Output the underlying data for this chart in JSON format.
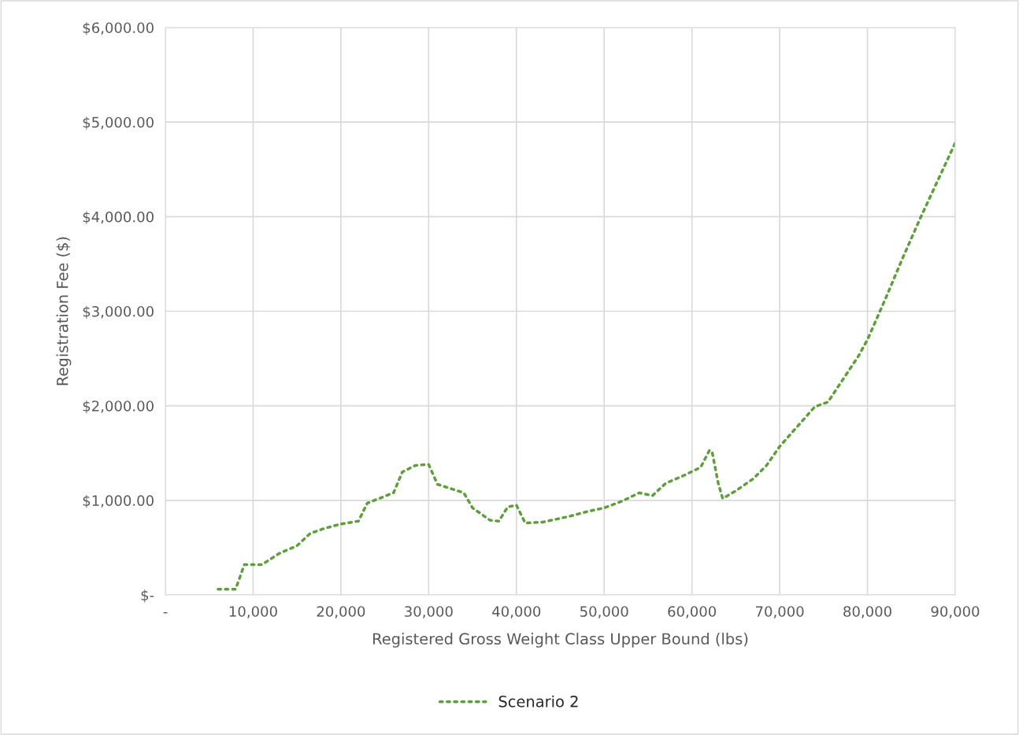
{
  "chart_data": {
    "type": "line",
    "xlabel": "Registered Gross Weight Class Upper Bound (lbs)",
    "ylabel": "Registration Fee ($)",
    "series": [
      {
        "name": "Scenario 2",
        "color": "#5e9e3c",
        "line_style": "dotted",
        "x": [
          6000,
          8000,
          9000,
          11000,
          13000,
          15000,
          16500,
          18000,
          20000,
          22000,
          23000,
          26000,
          27000,
          28500,
          30000,
          31000,
          34000,
          35000,
          37000,
          38000,
          39000,
          40000,
          41000,
          43000,
          46000,
          48000,
          50000,
          52000,
          54000,
          55500,
          57000,
          59000,
          61000,
          62000,
          62300,
          63000,
          63500,
          65000,
          67000,
          68500,
          70000,
          72000,
          74000,
          75500,
          77000,
          79000,
          80000,
          82000,
          84000,
          86000,
          88000,
          90000
        ],
        "values": [
          60,
          60,
          320,
          320,
          440,
          520,
          650,
          700,
          750,
          780,
          970,
          1080,
          1300,
          1370,
          1380,
          1170,
          1080,
          920,
          790,
          780,
          930,
          950,
          760,
          770,
          830,
          880,
          920,
          990,
          1080,
          1050,
          1180,
          1260,
          1350,
          1530,
          1510,
          1180,
          1020,
          1100,
          1230,
          1370,
          1570,
          1780,
          1990,
          2040,
          2250,
          2530,
          2700,
          3120,
          3560,
          3980,
          4380,
          4780
        ]
      }
    ],
    "xlim": [
      0,
      90000
    ],
    "xticks": [
      {
        "value": 0,
        "label": "-"
      },
      {
        "value": 10000,
        "label": "10,000"
      },
      {
        "value": 20000,
        "label": "20,000"
      },
      {
        "value": 30000,
        "label": "30,000"
      },
      {
        "value": 40000,
        "label": "40,000"
      },
      {
        "value": 50000,
        "label": "50,000"
      },
      {
        "value": 60000,
        "label": "60,000"
      },
      {
        "value": 70000,
        "label": "70,000"
      },
      {
        "value": 80000,
        "label": "80,000"
      },
      {
        "value": 90000,
        "label": "90,000"
      }
    ],
    "ylim": [
      0,
      6000
    ],
    "yticks": [
      {
        "value": 0,
        "label": "$-"
      },
      {
        "value": 1000,
        "label": "$1,000.00"
      },
      {
        "value": 2000,
        "label": "$2,000.00"
      },
      {
        "value": 3000,
        "label": "$3,000.00"
      },
      {
        "value": 4000,
        "label": "$4,000.00"
      },
      {
        "value": 5000,
        "label": "$5,000.00"
      },
      {
        "value": 6000,
        "label": "$6,000.00"
      }
    ],
    "grid": true,
    "legend": "bottom"
  }
}
